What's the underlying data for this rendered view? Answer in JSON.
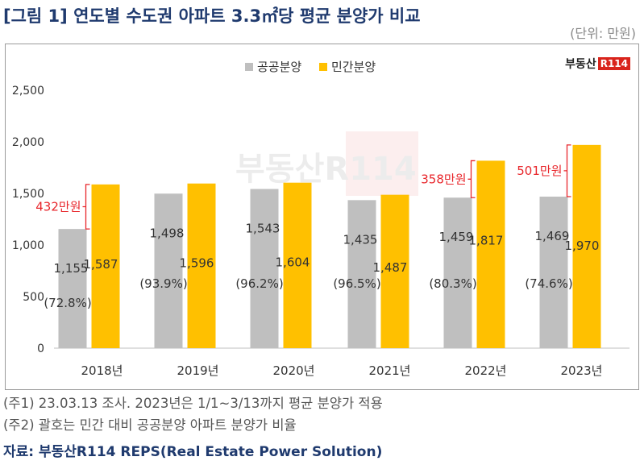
{
  "title": "[그림 1] 연도별 수도권 아파트 3.3㎡당 평균 분양가 비교",
  "unit": "(단위: 만원)",
  "brand": {
    "text": "부동산",
    "r_box": "R114",
    "watermark": "부동산R114"
  },
  "colors": {
    "public": "#bfbfbf",
    "private": "#ffc000",
    "annotation": "#e8262b",
    "title": "#1f3a6e"
  },
  "chart_data": {
    "type": "bar",
    "categories": [
      "2018년",
      "2019년",
      "2020년",
      "2021년",
      "2022년",
      "2023년"
    ],
    "series": [
      {
        "name": "공공분양",
        "values": [
          1155,
          1498,
          1543,
          1435,
          1459,
          1469
        ]
      },
      {
        "name": "민간분양",
        "values": [
          1587,
          1596,
          1604,
          1487,
          1817,
          1970
        ]
      }
    ],
    "value_labels": {
      "공공분양": [
        "1,155",
        "1,498",
        "1,543",
        "1,435",
        "1,459",
        "1,469"
      ],
      "민간분양": [
        "1,587",
        "1,596",
        "1,604",
        "1,487",
        "1,817",
        "1,970"
      ]
    },
    "ratio_labels": [
      "(72.8%)",
      "(93.9%)",
      "(96.2%)",
      "(96.5%)",
      "(80.3%)",
      "(74.6%)"
    ],
    "annotations": [
      {
        "category": "2018년",
        "text": "432만원"
      },
      {
        "category": "2022년",
        "text": "358만원"
      },
      {
        "category": "2023년",
        "text": "501만원"
      }
    ],
    "ylim": [
      0,
      2500
    ],
    "yticks": [
      0,
      500,
      1000,
      1500,
      2000,
      2500
    ],
    "ytick_labels": [
      "0",
      "500",
      "1,000",
      "1,500",
      "2,000",
      "2,500"
    ],
    "legend_position": "top-center",
    "grid": false
  },
  "notes": [
    "(주1) 23.03.13 조사. 2023년은 1/1~3/13까지 평균 분양가 적용",
    "(주2) 괄호는 민간 대비 공공분양 아파트 분양가 비율"
  ],
  "source": "자료: 부동산R114 REPS(Real Estate Power Solution)"
}
